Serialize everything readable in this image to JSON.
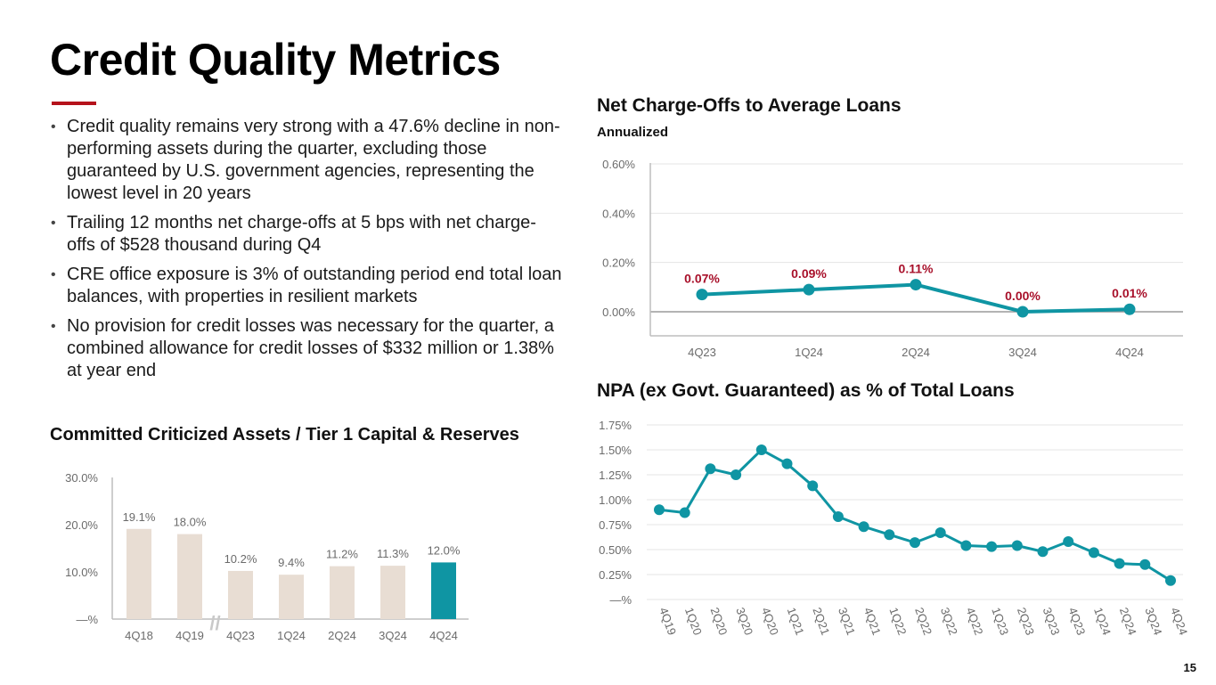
{
  "slide": {
    "title": "Credit Quality Metrics",
    "page_number": "15",
    "bullets": [
      "Credit quality remains very strong with a 47.6% decline in non-performing assets during the quarter, excluding those guaranteed by U.S. government agencies, representing the lowest level in 20 years",
      "Trailing 12 months net charge-offs at 5 bps with net charge-offs of $528 thousand during Q4",
      "CRE office exposure is 3% of outstanding period end total loan balances, with properties in resilient markets",
      "No provision for credit losses was necessary for the quarter, a combined allowance for credit losses of $332 million or 1.38% at year end"
    ]
  },
  "colors": {
    "accent_red": "#b5121b",
    "label_red": "#a8102a",
    "teal": "#0f95a3",
    "bar_beige": "#e8ddd3",
    "grid": "#e4e4e4"
  },
  "chart_data": [
    {
      "id": "nco",
      "type": "line",
      "title": "Net Charge-Offs to Average Loans",
      "subtitle": "Annualized",
      "categories": [
        "4Q23",
        "1Q24",
        "2Q24",
        "3Q24",
        "4Q24"
      ],
      "values": [
        0.07,
        0.09,
        0.11,
        0.0,
        0.01
      ],
      "data_labels": [
        "0.07%",
        "0.09%",
        "0.11%",
        "0.00%",
        "0.01%"
      ],
      "y_ticks": [
        0.0,
        0.2,
        0.4,
        0.6
      ],
      "y_tick_labels": [
        "0.00%",
        "0.20%",
        "0.40%",
        "0.60%"
      ],
      "ylim": [
        -0.1,
        0.6
      ],
      "grid": true
    },
    {
      "id": "npa",
      "type": "line",
      "title": "NPA (ex Govt. Guaranteed) as % of Total Loans",
      "categories": [
        "4Q19",
        "1Q20",
        "2Q20",
        "3Q20",
        "4Q20",
        "1Q21",
        "2Q21",
        "3Q21",
        "4Q21",
        "1Q22",
        "2Q22",
        "3Q22",
        "4Q22",
        "1Q23",
        "2Q23",
        "3Q23",
        "4Q23",
        "1Q24",
        "2Q24",
        "3Q24",
        "4Q24"
      ],
      "values": [
        0.9,
        0.87,
        1.31,
        1.25,
        1.5,
        1.36,
        1.14,
        0.83,
        0.73,
        0.65,
        0.57,
        0.67,
        0.54,
        0.53,
        0.54,
        0.48,
        0.58,
        0.47,
        0.36,
        0.35,
        0.19
      ],
      "y_ticks": [
        0.0,
        0.25,
        0.5,
        0.75,
        1.0,
        1.25,
        1.5,
        1.75
      ],
      "y_tick_labels": [
        "—%",
        "0.25%",
        "0.50%",
        "0.75%",
        "1.00%",
        "1.25%",
        "1.50%",
        "1.75%"
      ],
      "ylim": [
        0.0,
        1.75
      ],
      "grid": true
    },
    {
      "id": "cca",
      "type": "bar",
      "title": "Committed Criticized Assets / Tier 1 Capital & Reserves",
      "categories": [
        "4Q18",
        "4Q19",
        "4Q23",
        "1Q24",
        "2Q24",
        "3Q24",
        "4Q24"
      ],
      "values": [
        19.1,
        18.0,
        10.2,
        9.4,
        11.2,
        11.3,
        12.0
      ],
      "data_labels": [
        "19.1%",
        "18.0%",
        "10.2%",
        "9.4%",
        "11.2%",
        "11.3%",
        "12.0%"
      ],
      "highlight_index": 6,
      "axis_break_after_index": 1,
      "axis_break_symbol": "//",
      "y_ticks": [
        0,
        10,
        20,
        30
      ],
      "y_tick_labels": [
        "—%",
        "10.0%",
        "20.0%",
        "30.0%"
      ],
      "ylim": [
        0,
        30
      ],
      "grid": false
    }
  ]
}
